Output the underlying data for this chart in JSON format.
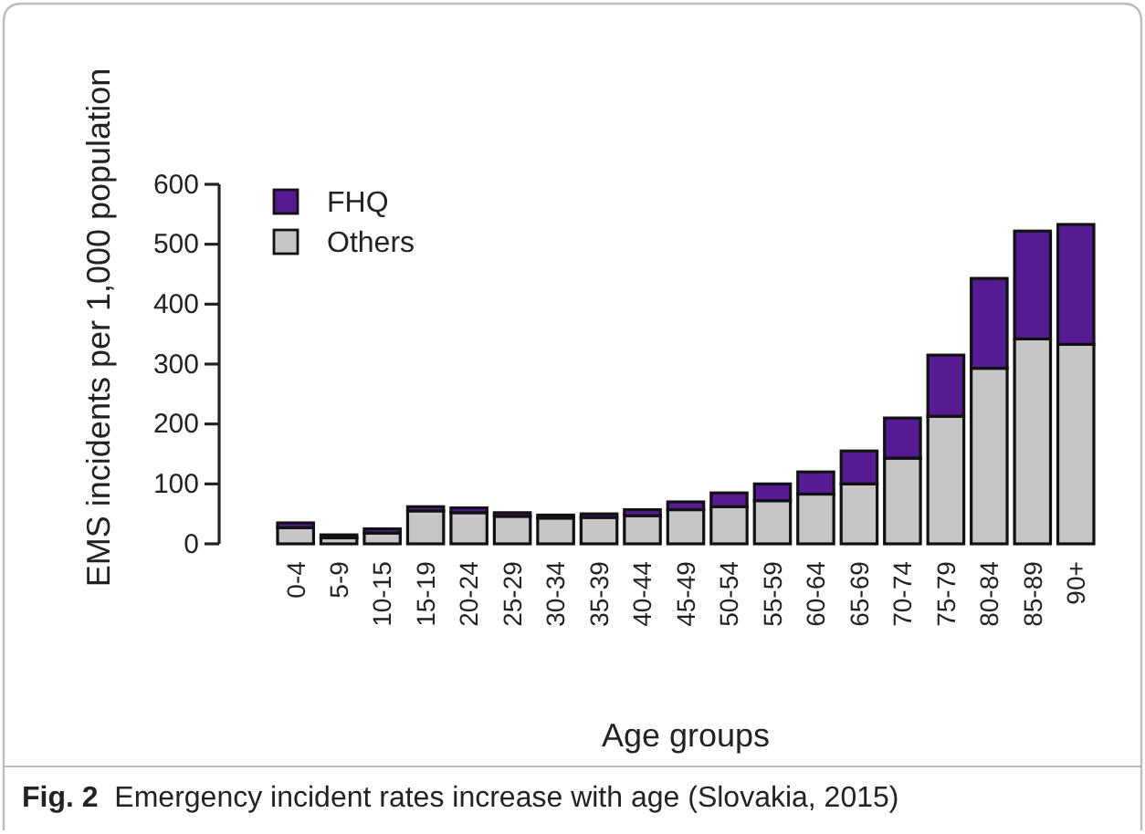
{
  "chart_data": {
    "type": "bar",
    "stacked": true,
    "xlabel": "Age groups",
    "ylabel": "EMS incidents per 1,000 population",
    "categories": [
      "0-4",
      "5-9",
      "10-15",
      "15-19",
      "20-24",
      "25-29",
      "30-34",
      "35-39",
      "40-44",
      "45-49",
      "50-54",
      "55-59",
      "60-64",
      "65-69",
      "70-74",
      "75-79",
      "80-84",
      "85-89",
      "90+"
    ],
    "series": [
      {
        "name": "Others",
        "color": "#c6c6c6",
        "values": [
          27,
          10,
          18,
          55,
          52,
          46,
          43,
          44,
          47,
          57,
          62,
          72,
          83,
          100,
          143,
          213,
          293,
          342,
          333
        ]
      },
      {
        "name": "FHQ",
        "color": "#561a92",
        "values": [
          8,
          5,
          7,
          7,
          8,
          6,
          5,
          6,
          10,
          13,
          23,
          28,
          37,
          55,
          67,
          102,
          150,
          180,
          200
        ]
      }
    ],
    "ylim": [
      0,
      600
    ],
    "yticks": [
      0,
      100,
      200,
      300,
      400,
      500,
      600
    ],
    "legend": "top left",
    "grid": false,
    "annotations": [
      "Fig. 2  Emergency incident rates increase with age (Slovakia, 2015)"
    ]
  }
}
